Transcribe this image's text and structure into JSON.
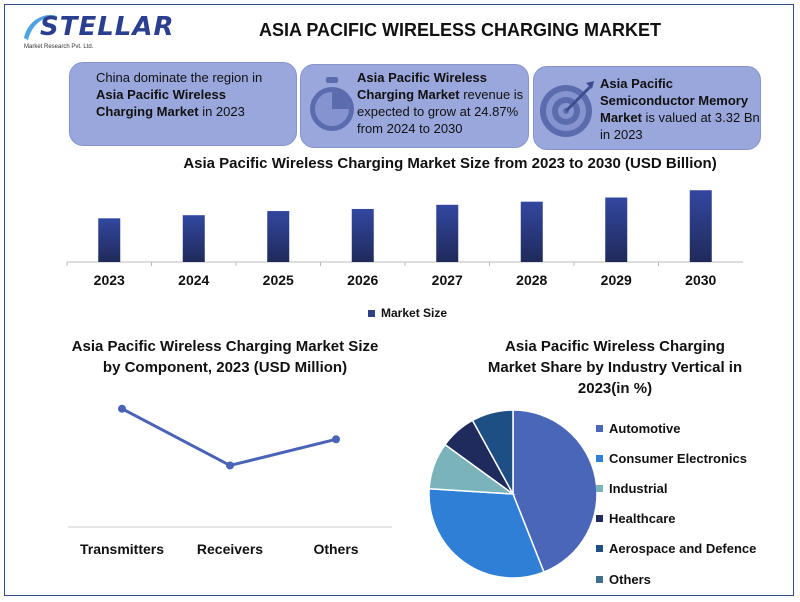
{
  "brand": {
    "name": "STELLAR",
    "sub": "Market Research Pvt. Ltd."
  },
  "title": "ASIA PACIFIC WIRELESS CHARGING MARKET",
  "cards": {
    "c1": {
      "pre": "China dominate the region in ",
      "bold": "Asia Pacific Wireless Charging Market",
      "post": " in 2023"
    },
    "c2": {
      "bold": "Asia Pacific Wireless Charging Market",
      "post": " revenue is expected to grow at 24.87% from 2024 to 2030",
      "icon": "stopwatch-icon"
    },
    "c3": {
      "bold": "Asia Pacific Semiconductor Memory Market",
      "post": " is valued at 3.32 Bn in 2023",
      "icon": "target-icon"
    }
  },
  "colors": {
    "bar": "#2e3f86",
    "line": "#4a63b6",
    "card": "#9aa7dc",
    "pie": [
      "#4a66b8",
      "#2f7fd6",
      "#7bb3bb",
      "#1e2b5c",
      "#1d4f85",
      "#3f6e8e"
    ]
  },
  "chart_data": [
    {
      "type": "bar",
      "title": "Asia Pacific Wireless Charging Market Size from 2023 to 2030 (USD Billion)",
      "categories": [
        "2023",
        "2024",
        "2025",
        "2026",
        "2027",
        "2028",
        "2029",
        "2030"
      ],
      "series": [
        {
          "name": "Market Size",
          "values": [
            42,
            45,
            49,
            51,
            55,
            58,
            62,
            69
          ]
        }
      ],
      "ylim": [
        0,
        75
      ],
      "grid": false,
      "legend": "bottom"
    },
    {
      "type": "line",
      "title": "Asia Pacific Wireless Charging Market Size by Component, 2023 (USD Million)",
      "categories": [
        "Transmitters",
        "Receivers",
        "Others"
      ],
      "values": [
        100,
        35,
        65
      ],
      "ylim": [
        0,
        110
      ],
      "grid": false
    },
    {
      "type": "pie",
      "title": "Asia Pacific Wireless Charging Market Share by Industry Vertical in 2023(in %)",
      "labels": [
        "Automotive",
        "Consumer Electronics",
        "Industrial",
        "Healthcare",
        "Aerospace and Defence",
        "Others"
      ],
      "values": [
        44,
        32,
        9,
        7,
        8,
        0
      ],
      "legend": "right"
    }
  ]
}
